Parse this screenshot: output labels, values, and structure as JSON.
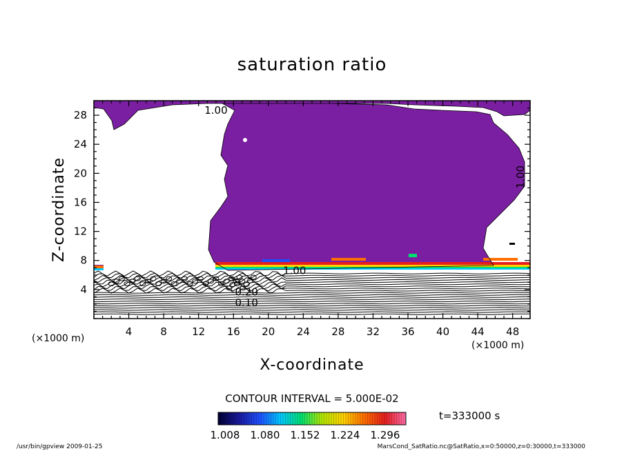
{
  "chart_data": {
    "type": "heatmap",
    "title": "saturation ratio",
    "xlabel": "X-coordinate",
    "ylabel": "Z-coordinate",
    "x_unit": "(×1000 m)",
    "y_unit": "(×1000 m)",
    "xlim": [
      0,
      50
    ],
    "ylim": [
      0,
      30
    ],
    "x_ticks": [
      "4",
      "8",
      "12",
      "16",
      "20",
      "24",
      "28",
      "32",
      "36",
      "40",
      "44",
      "48"
    ],
    "y_ticks": [
      "4",
      "8",
      "12",
      "16",
      "20",
      "24",
      "28"
    ],
    "contour_interval": "CONTOUR INTERVAL = 5.000E-02",
    "time_label": "t=333000 s",
    "colorbar_ticks": [
      "1.008",
      "1.080",
      "1.152",
      "1.224",
      "1.296"
    ],
    "colorbar_range": [
      1.008,
      1.296
    ],
    "contour_labels": [
      {
        "text": "1.00",
        "x": 14.0,
        "y": 28.2
      },
      {
        "text": "1.00",
        "x": 49.3,
        "y": 19.5
      },
      {
        "text": "1.00",
        "x": 23.0,
        "y": 6.1
      },
      {
        "text": "0.20",
        "x": 17.5,
        "y": 3.2
      },
      {
        "text": "0.10",
        "x": 17.5,
        "y": 1.7
      }
    ],
    "contour_levels_lower": [
      0.05,
      0.1,
      0.15,
      0.2,
      0.25,
      0.3,
      0.35,
      0.4,
      0.45,
      0.5,
      0.55,
      0.6,
      0.65,
      0.7,
      0.75,
      0.8,
      0.85,
      0.9,
      0.95,
      1.0
    ],
    "supersaturated_region_color": "#7B1FA2",
    "palette": [
      "#000033",
      "#1a1a9e",
      "#1e50ff",
      "#00c8ff",
      "#00e070",
      "#b4e600",
      "#ffd200",
      "#ff6e00",
      "#e61e1e",
      "#ff6eaa"
    ],
    "grid": false
  },
  "footer": {
    "left": "/usr/bin/gpview   2009-01-25",
    "right": "MarsCond_SatRatio.nc@SatRatio,x=0:50000,z=0:30000,t=333000"
  }
}
